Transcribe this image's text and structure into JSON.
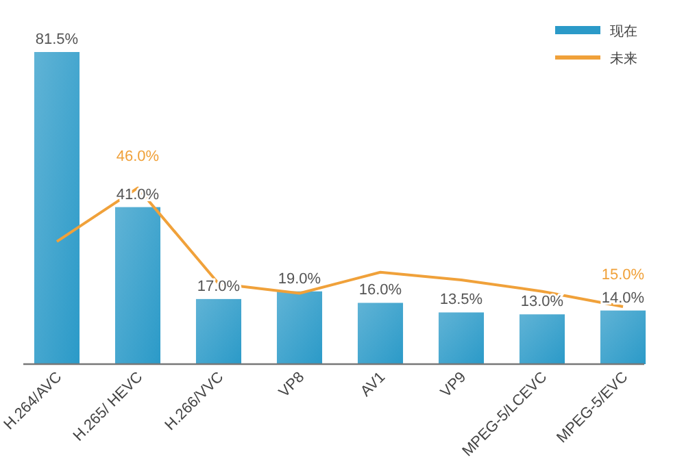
{
  "chart_data": {
    "type": "bar",
    "categories": [
      "H.264/AVC",
      "H.265/ HEVC",
      "H.266/VVC",
      "VP8",
      "AV1",
      "VP9",
      "MPEG-5/LCEVC",
      "MPEG-5/EVC"
    ],
    "series": [
      {
        "name": "现在",
        "color": "#2b9ac8",
        "values": [
          81.5,
          41.0,
          17.0,
          19.0,
          16.0,
          13.5,
          13.0,
          14.0
        ],
        "value_labels": [
          "81.5%",
          "41.0%",
          "17.0%",
          "19.0%",
          "16.0%",
          "13.5%",
          "13.0%",
          "14.0%"
        ]
      },
      {
        "name": "未来",
        "type": "line",
        "color": "#f0a13a",
        "values": [
          32.0,
          46.0,
          21.0,
          18.5,
          24.0,
          22.0,
          19.0,
          15.0
        ],
        "value_labels": [
          null,
          "46.0%",
          null,
          null,
          null,
          null,
          null,
          "15.0%"
        ]
      }
    ],
    "legend": "top right",
    "grid": false
  }
}
